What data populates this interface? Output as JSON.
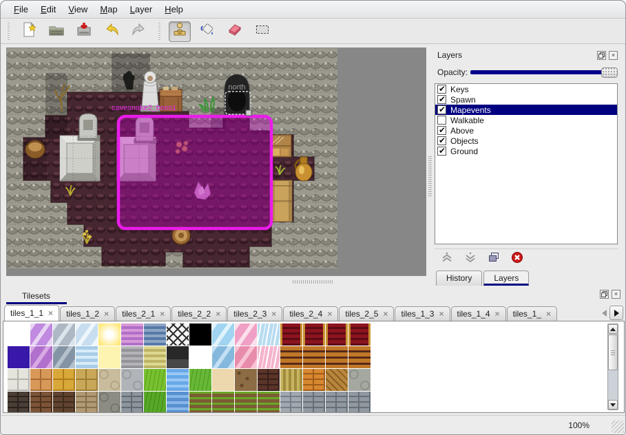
{
  "menu": {
    "items": [
      "File",
      "Edit",
      "View",
      "Map",
      "Layer",
      "Help"
    ]
  },
  "toolbar": {
    "buttons": [
      {
        "name": "new-map",
        "icon": "new-file-icon",
        "group": 1,
        "active": false
      },
      {
        "name": "open-map",
        "icon": "open-folder-icon",
        "group": 1,
        "active": false
      },
      {
        "name": "save-map",
        "icon": "save-icon",
        "group": 1,
        "active": false
      },
      {
        "name": "undo",
        "icon": "undo-icon",
        "group": 1,
        "active": false
      },
      {
        "name": "redo",
        "icon": "redo-icon",
        "group": 1,
        "active": false
      },
      {
        "name": "stamp-tool",
        "icon": "stamp-tool-icon",
        "group": 2,
        "active": true
      },
      {
        "name": "fill-tool",
        "icon": "fill-tool-icon",
        "group": 2,
        "active": false
      },
      {
        "name": "eraser-tool",
        "icon": "eraser-tool-icon",
        "group": 2,
        "active": false
      },
      {
        "name": "select-tool",
        "icon": "select-tool-icon",
        "group": 2,
        "active": false
      }
    ]
  },
  "map": {
    "captions": {
      "door_label": "north",
      "event_label": "cavesnake2_boss1"
    },
    "colors": {
      "selection_border": "#ea1cea",
      "selection_fill": "#c000c0",
      "out_of_map": "#878787"
    }
  },
  "layers_panel": {
    "title": "Layers",
    "opacity_label": "Opacity:",
    "opacity_value_percent": 100,
    "layers": [
      {
        "label": "Keys",
        "checked": true,
        "selected": false
      },
      {
        "label": "Spawn",
        "checked": true,
        "selected": false
      },
      {
        "label": "Mapevents",
        "checked": true,
        "selected": true
      },
      {
        "label": "Walkable",
        "checked": false,
        "selected": false
      },
      {
        "label": "Above",
        "checked": true,
        "selected": false
      },
      {
        "label": "Objects",
        "checked": true,
        "selected": false
      },
      {
        "label": "Ground",
        "checked": true,
        "selected": false
      }
    ],
    "buttons": [
      {
        "name": "raise-layer",
        "icon": "chevron-up-icon"
      },
      {
        "name": "lower-layer",
        "icon": "chevron-down-icon"
      },
      {
        "name": "duplicate-layer",
        "icon": "duplicate-icon"
      },
      {
        "name": "delete-layer",
        "icon": "delete-icon"
      }
    ],
    "tabs": [
      {
        "label": "History",
        "active": false
      },
      {
        "label": "Layers",
        "active": true
      }
    ],
    "selected_color": "#000080"
  },
  "tilesets_panel": {
    "title": "Tilesets",
    "tabs": [
      {
        "label": "tiles_1_1",
        "active": true
      },
      {
        "label": "tiles_1_2",
        "active": false
      },
      {
        "label": "tiles_2_1",
        "active": false
      },
      {
        "label": "tiles_2_2",
        "active": false
      },
      {
        "label": "tiles_2_3",
        "active": false
      },
      {
        "label": "tiles_2_4",
        "active": false
      },
      {
        "label": "tiles_2_5",
        "active": false
      },
      {
        "label": "tiles_1_3",
        "active": false
      },
      {
        "label": "tiles_1_4",
        "active": false
      },
      {
        "label": "tiles_1_",
        "active": false
      }
    ],
    "tile_rows": [
      [
        [
          "flat",
          "#ffffff",
          ""
        ],
        [
          "glass",
          "#c08ae0",
          "#e8d4f4"
        ],
        [
          "glass",
          "#aeb8c4",
          "#dce4ec"
        ],
        [
          "glass",
          "#c8def0",
          "#eef6fc"
        ],
        [
          "glow",
          "#ffffff",
          "#ffe878"
        ],
        [
          "hstripes",
          "#d898d8",
          "#b070c8"
        ],
        [
          "hstripes",
          "#8ca6c4",
          "#5878a8"
        ],
        [
          "lattice",
          "#f4f4f4",
          "#303030"
        ],
        [
          "flat",
          "#000000",
          ""
        ],
        [
          "glass",
          "#a0d4f0",
          "#e0f2fc"
        ],
        [
          "glass",
          "#f0a0c4",
          "#fce0ec"
        ],
        [
          "shards",
          "#b8dcf0",
          "#ffffff"
        ],
        [
          "curtain",
          "#8c1420",
          "#c89030"
        ],
        [
          "curtain",
          "#8c1420",
          "#c89030"
        ],
        [
          "curtain",
          "#8c1420",
          "#c89030"
        ],
        [
          "curtain",
          "#8c1420",
          "#c89030"
        ]
      ],
      [
        [
          "flat",
          "#3818a8",
          ""
        ],
        [
          "glass",
          "#b070cc",
          "#d8a8e4"
        ],
        [
          "glass",
          "#8494a4",
          "#b4c0cc"
        ],
        [
          "water",
          "#a8cce8",
          "#d8ecf8"
        ],
        [
          "flat",
          "#fcf4b0",
          ""
        ],
        [
          "hstripes",
          "#b4b4b8",
          "#949498"
        ],
        [
          "hstripes",
          "#ded890",
          "#bcb464"
        ],
        [
          "sign",
          "#282828",
          "#484848"
        ],
        [
          "flat",
          "#ffffff",
          ""
        ],
        [
          "glass",
          "#84b8dc",
          "#c4e0f4"
        ],
        [
          "glass",
          "#e88cac",
          "#f8c4d4"
        ],
        [
          "shards",
          "#f4b4cc",
          "#ffffff"
        ],
        [
          "planks",
          "#c07828",
          "#582818"
        ],
        [
          "planks",
          "#c07828",
          "#582818"
        ],
        [
          "planks",
          "#c07828",
          "#582818"
        ],
        [
          "planks",
          "#c07828",
          "#582818"
        ]
      ],
      [
        [
          "blocks",
          "#e4e4dc",
          "#b4b4ac"
        ],
        [
          "blocks",
          "#d89858",
          "#a86c34"
        ],
        [
          "blocks",
          "#d8a838",
          "#b07c1c"
        ],
        [
          "blocks",
          "#c8a858",
          "#9c7c34"
        ],
        [
          "cobble",
          "#c8bc9c",
          "#a09070"
        ],
        [
          "cobble",
          "#b0b4b8",
          "#84888c"
        ],
        [
          "grass",
          "#78c030",
          "#58a018"
        ],
        [
          "water",
          "#68a8e8",
          "#98c8f4"
        ],
        [
          "grass",
          "#68b838",
          "#4c9820"
        ],
        [
          "flat",
          "#ecd8ac",
          ""
        ],
        [
          "dots",
          "#8c6c44",
          "#64482a"
        ],
        [
          "bricks",
          "#5a3428",
          "#38201a"
        ],
        [
          "vstripes",
          "#c8b460",
          "#a08c3c"
        ],
        [
          "bricks",
          "#d88830",
          "#a05c18"
        ],
        [
          "diag",
          "#b8863c",
          "#8a5e22"
        ],
        [
          "cobble",
          "#a4a8a0",
          "#787c74"
        ]
      ],
      [
        [
          "bricks",
          "#4a3e36",
          "#2a221e"
        ],
        [
          "bricks",
          "#7c5438",
          "#50321c"
        ],
        [
          "bricks",
          "#604430",
          "#402c1a"
        ],
        [
          "bricks",
          "#b09a74",
          "#86704c"
        ],
        [
          "cobble",
          "#8c8c84",
          "#62625a"
        ],
        [
          "bricks",
          "#8c949c",
          "#626a72"
        ],
        [
          "grass",
          "#58a828",
          "#3c8814"
        ],
        [
          "water",
          "#5890d0",
          "#88b8e8"
        ],
        [
          "crops",
          "#7c5c34",
          "#68a828"
        ],
        [
          "crops",
          "#7c5c34",
          "#68a828"
        ],
        [
          "crops",
          "#7c5c34",
          "#68a828"
        ],
        [
          "crops",
          "#7c5c34",
          "#68a828"
        ],
        [
          "bricks",
          "#a2a8b0",
          "#767e86"
        ],
        [
          "bricks",
          "#9098a0",
          "#666e76"
        ],
        [
          "bricks",
          "#9098a0",
          "#666e76"
        ],
        [
          "bricks",
          "#9098a0",
          "#666e76"
        ]
      ],
      [
        [
          "flat",
          "#1e1812",
          ""
        ],
        [
          "flat",
          "#261c12",
          ""
        ],
        [
          "flat",
          "#2c2014",
          ""
        ],
        [
          "flat",
          "#1a1410",
          ""
        ],
        [
          "flat",
          "#262018",
          ""
        ],
        [
          "flat",
          "#16140e",
          ""
        ],
        [
          "flat",
          "#1e260e",
          ""
        ],
        [
          "flat",
          "#222a16",
          ""
        ],
        [
          "grass",
          "#68b030",
          "#4c9418"
        ],
        [
          "flat",
          "#20201c",
          ""
        ],
        [
          "flat",
          "#1c1a14",
          ""
        ],
        [
          "flat",
          "#282018",
          ""
        ],
        [
          "flat",
          "#32363a",
          ""
        ],
        [
          "flat",
          "#2a2e32",
          ""
        ],
        [
          "flat",
          "#22262a",
          ""
        ],
        [
          "flat",
          "#262a2e",
          ""
        ]
      ]
    ]
  },
  "statusbar": {
    "zoom": "100%"
  }
}
